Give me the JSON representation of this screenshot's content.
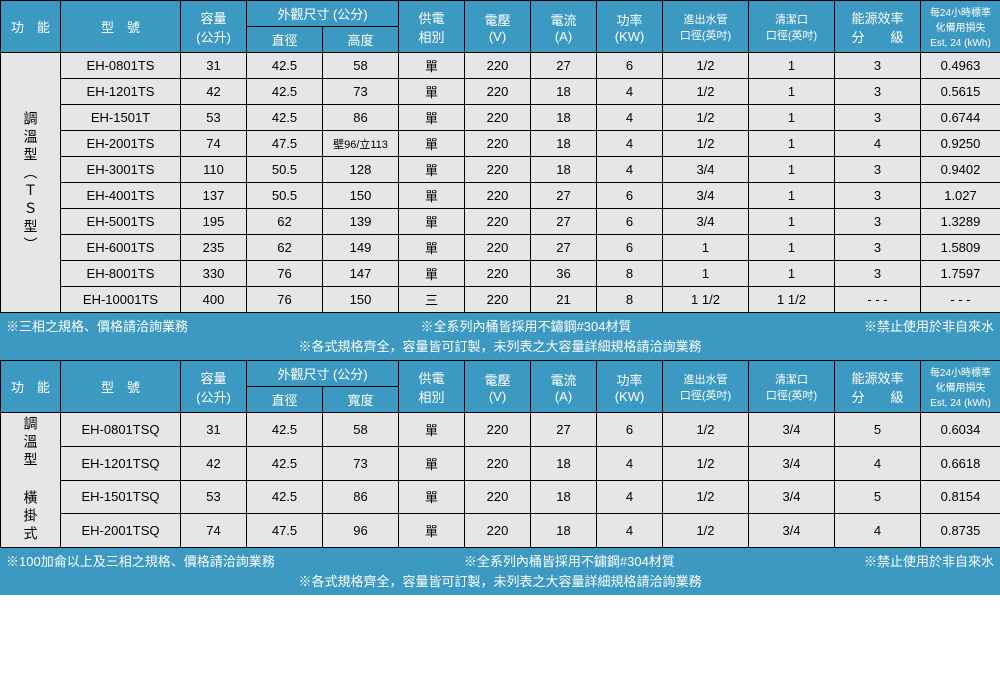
{
  "colors": {
    "header_bg": "#3c99c2",
    "header_fg": "#ffffff",
    "cell_bg": "#e6e6e6",
    "border": "#000000"
  },
  "columns1": {
    "c0": "功　能",
    "c1": "型　號",
    "c2_top": "容量",
    "c2_bot": "(公升)",
    "c3_top": "外觀尺寸 (公分)",
    "c3a": "直徑",
    "c3b": "高度",
    "c4_top": "供電",
    "c4_bot": "相別",
    "c5_top": "電壓",
    "c5_bot": "(V)",
    "c6_top": "電流",
    "c6_bot": "(A)",
    "c7_top": "功率",
    "c7_bot": "(KW)",
    "c8_top": "進出水管",
    "c8_bot": "口徑(英吋)",
    "c9_top": "清潔口",
    "c9_bot": "口徑(英吋)",
    "c10_top": "能源效率",
    "c10_bot": "分　　級",
    "c11_top": "每24小時標準",
    "c11_mid": "化備用損失",
    "c11_bot": "Est, 24 (kWh)"
  },
  "cat1": "調溫型（ＴＳ型）",
  "rows1": [
    {
      "model": "EH-0801TS",
      "cap": "31",
      "dia": "42.5",
      "h": "58",
      "phase": "單",
      "v": "220",
      "a": "27",
      "kw": "6",
      "pipe": "1/2",
      "clean": "1",
      "eff": "3",
      "est": "0.4963"
    },
    {
      "model": "EH-1201TS",
      "cap": "42",
      "dia": "42.5",
      "h": "73",
      "phase": "單",
      "v": "220",
      "a": "18",
      "kw": "4",
      "pipe": "1/2",
      "clean": "1",
      "eff": "3",
      "est": "0.5615"
    },
    {
      "model": "EH-1501T",
      "cap": "53",
      "dia": "42.5",
      "h": "86",
      "phase": "單",
      "v": "220",
      "a": "18",
      "kw": "4",
      "pipe": "1/2",
      "clean": "1",
      "eff": "3",
      "est": "0.6744"
    },
    {
      "model": "EH-2001TS",
      "cap": "74",
      "dia": "47.5",
      "h": "壁96/立113",
      "phase": "單",
      "v": "220",
      "a": "18",
      "kw": "4",
      "pipe": "1/2",
      "clean": "1",
      "eff": "4",
      "est": "0.9250"
    },
    {
      "model": "EH-3001TS",
      "cap": "110",
      "dia": "50.5",
      "h": "128",
      "phase": "單",
      "v": "220",
      "a": "18",
      "kw": "4",
      "pipe": "3/4",
      "clean": "1",
      "eff": "3",
      "est": "0.9402"
    },
    {
      "model": "EH-4001TS",
      "cap": "137",
      "dia": "50.5",
      "h": "150",
      "phase": "單",
      "v": "220",
      "a": "27",
      "kw": "6",
      "pipe": "3/4",
      "clean": "1",
      "eff": "3",
      "est": "1.027"
    },
    {
      "model": "EH-5001TS",
      "cap": "195",
      "dia": "62",
      "h": "139",
      "phase": "單",
      "v": "220",
      "a": "27",
      "kw": "6",
      "pipe": "3/4",
      "clean": "1",
      "eff": "3",
      "est": "1.3289"
    },
    {
      "model": "EH-6001TS",
      "cap": "235",
      "dia": "62",
      "h": "149",
      "phase": "單",
      "v": "220",
      "a": "27",
      "kw": "6",
      "pipe": "1",
      "clean": "1",
      "eff": "3",
      "est": "1.5809"
    },
    {
      "model": "EH-8001TS",
      "cap": "330",
      "dia": "76",
      "h": "147",
      "phase": "單",
      "v": "220",
      "a": "36",
      "kw": "8",
      "pipe": "1",
      "clean": "1",
      "eff": "3",
      "est": "1.7597"
    },
    {
      "model": "EH-10001TS",
      "cap": "400",
      "dia": "76",
      "h": "150",
      "phase": "三",
      "v": "220",
      "a": "21",
      "kw": "8",
      "pipe": "1 1/2",
      "clean": "1 1/2",
      "eff": "- - -",
      "est": "- - -"
    }
  ],
  "notes1": {
    "a": "※三相之規格、價格請洽詢業務",
    "b": "※全系列內桶皆採用不鏽鋼#304材質",
    "c": "※禁止使用於非自來水",
    "d": "※各式規格齊全，容量皆可訂製，未列表之大容量詳細規格請洽詢業務"
  },
  "columns2": {
    "c3b": "寬度"
  },
  "cat2": "調溫型 橫掛式",
  "rows2": [
    {
      "model": "EH-0801TSQ",
      "cap": "31",
      "dia": "42.5",
      "h": "58",
      "phase": "單",
      "v": "220",
      "a": "27",
      "kw": "6",
      "pipe": "1/2",
      "clean": "3/4",
      "eff": "5",
      "est": "0.6034"
    },
    {
      "model": "EH-1201TSQ",
      "cap": "42",
      "dia": "42.5",
      "h": "73",
      "phase": "單",
      "v": "220",
      "a": "18",
      "kw": "4",
      "pipe": "1/2",
      "clean": "3/4",
      "eff": "4",
      "est": "0.6618"
    },
    {
      "model": "EH-1501TSQ",
      "cap": "53",
      "dia": "42.5",
      "h": "86",
      "phase": "單",
      "v": "220",
      "a": "18",
      "kw": "4",
      "pipe": "1/2",
      "clean": "3/4",
      "eff": "5",
      "est": "0.8154"
    },
    {
      "model": "EH-2001TSQ",
      "cap": "74",
      "dia": "47.5",
      "h": "96",
      "phase": "單",
      "v": "220",
      "a": "18",
      "kw": "4",
      "pipe": "1/2",
      "clean": "3/4",
      "eff": "4",
      "est": "0.8735"
    }
  ],
  "notes2": {
    "a": "※100加侖以上及三相之規格、價格請洽詢業務",
    "b": "※全系列內桶皆採用不鏽鋼#304材質",
    "c": "※禁止使用於非自來水",
    "d": "※各式規格齊全，容量皆可訂製，未列表之大容量詳細規格請洽詢業務"
  }
}
